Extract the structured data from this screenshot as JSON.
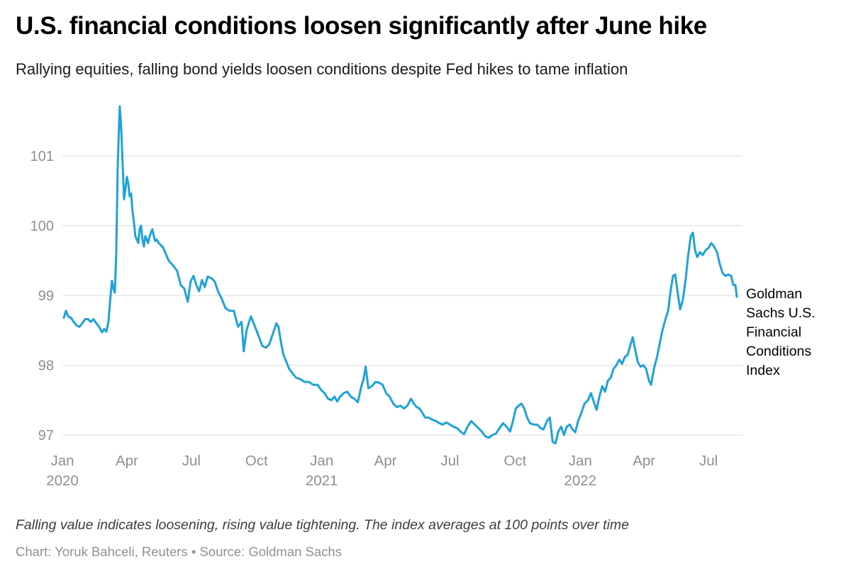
{
  "header": {
    "title": "U.S. financial conditions loosen significantly after June hike",
    "subtitle": "Rallying equities, falling bond yields loosen conditions despite Fed hikes to tame inflation"
  },
  "footer": {
    "note": "Falling value indicates loosening, rising value tightening. The index averages at 100 points over time",
    "credit": "Chart: Yoruk Bahceli, Reuters • Source: Goldman Sachs"
  },
  "chart_data": {
    "type": "line",
    "title": "U.S. financial conditions loosen significantly after June hike",
    "xlabel": "",
    "ylabel": "",
    "series_label": "Goldman Sachs U.S. Financial Conditions Index",
    "line_color": "#1FA2D7",
    "grid_color": "#dcdcdc",
    "axis_label_color": "#8f8f8f",
    "grid": true,
    "legend_position": "right-of-line-end",
    "ylim": [
      96.7,
      101.9
    ],
    "yticks": [
      97,
      98,
      99,
      100,
      101
    ],
    "x_range": [
      "2020-01-01",
      "2022-08-18"
    ],
    "xticks": [
      {
        "d": "2020-01-01",
        "l": "Jan",
        "y": "2020"
      },
      {
        "d": "2020-04-01",
        "l": "Apr"
      },
      {
        "d": "2020-07-01",
        "l": "Jul"
      },
      {
        "d": "2020-10-01",
        "l": "Oct"
      },
      {
        "d": "2021-01-01",
        "l": "Jan",
        "y": "2021"
      },
      {
        "d": "2021-04-01",
        "l": "Apr"
      },
      {
        "d": "2021-07-01",
        "l": "Jul"
      },
      {
        "d": "2021-10-01",
        "l": "Oct"
      },
      {
        "d": "2022-01-01",
        "l": "Jan",
        "y": "2022"
      },
      {
        "d": "2022-04-01",
        "l": "Apr"
      },
      {
        "d": "2022-07-01",
        "l": "Jul"
      }
    ],
    "points": [
      [
        "2020-01-03",
        98.68
      ],
      [
        "2020-01-06",
        98.78
      ],
      [
        "2020-01-09",
        98.7
      ],
      [
        "2020-01-13",
        98.68
      ],
      [
        "2020-01-17",
        98.62
      ],
      [
        "2020-01-21",
        98.57
      ],
      [
        "2020-01-25",
        98.55
      ],
      [
        "2020-01-29",
        98.6
      ],
      [
        "2020-02-02",
        98.66
      ],
      [
        "2020-02-06",
        98.66
      ],
      [
        "2020-02-10",
        98.62
      ],
      [
        "2020-02-14",
        98.66
      ],
      [
        "2020-02-18",
        98.6
      ],
      [
        "2020-02-22",
        98.55
      ],
      [
        "2020-02-26",
        98.47
      ],
      [
        "2020-02-29",
        98.52
      ],
      [
        "2020-03-03",
        98.48
      ],
      [
        "2020-03-06",
        98.62
      ],
      [
        "2020-03-09",
        99.0
      ],
      [
        "2020-03-11",
        99.21
      ],
      [
        "2020-03-13",
        99.1
      ],
      [
        "2020-03-15",
        99.04
      ],
      [
        "2020-03-17",
        99.6
      ],
      [
        "2020-03-19",
        100.8
      ],
      [
        "2020-03-21",
        101.45
      ],
      [
        "2020-03-22",
        101.71
      ],
      [
        "2020-03-24",
        101.4
      ],
      [
        "2020-03-26",
        100.9
      ],
      [
        "2020-03-28",
        100.38
      ],
      [
        "2020-03-30",
        100.52
      ],
      [
        "2020-04-01",
        100.7
      ],
      [
        "2020-04-03",
        100.6
      ],
      [
        "2020-04-05",
        100.42
      ],
      [
        "2020-04-07",
        100.46
      ],
      [
        "2020-04-09",
        100.2
      ],
      [
        "2020-04-11",
        100.05
      ],
      [
        "2020-04-13",
        99.85
      ],
      [
        "2020-04-15",
        99.8
      ],
      [
        "2020-04-17",
        99.75
      ],
      [
        "2020-04-19",
        99.95
      ],
      [
        "2020-04-21",
        100.0
      ],
      [
        "2020-04-23",
        99.8
      ],
      [
        "2020-04-25",
        99.7
      ],
      [
        "2020-04-27",
        99.85
      ],
      [
        "2020-04-29",
        99.8
      ],
      [
        "2020-05-01",
        99.75
      ],
      [
        "2020-05-03",
        99.85
      ],
      [
        "2020-05-05",
        99.9
      ],
      [
        "2020-05-07",
        99.95
      ],
      [
        "2020-05-09",
        99.85
      ],
      [
        "2020-05-11",
        99.78
      ],
      [
        "2020-05-13",
        99.8
      ],
      [
        "2020-05-16",
        99.75
      ],
      [
        "2020-05-19",
        99.72
      ],
      [
        "2020-05-22",
        99.69
      ],
      [
        "2020-05-30",
        99.5
      ],
      [
        "2020-06-06",
        99.42
      ],
      [
        "2020-06-11",
        99.35
      ],
      [
        "2020-06-16",
        99.15
      ],
      [
        "2020-06-21",
        99.1
      ],
      [
        "2020-06-26",
        98.91
      ],
      [
        "2020-06-30",
        99.2
      ],
      [
        "2020-07-04",
        99.28
      ],
      [
        "2020-07-08",
        99.15
      ],
      [
        "2020-07-12",
        99.06
      ],
      [
        "2020-07-16",
        99.22
      ],
      [
        "2020-07-20",
        99.12
      ],
      [
        "2020-07-24",
        99.27
      ],
      [
        "2020-07-29",
        99.25
      ],
      [
        "2020-08-03",
        99.2
      ],
      [
        "2020-08-08",
        99.05
      ],
      [
        "2020-08-13",
        98.95
      ],
      [
        "2020-08-18",
        98.82
      ],
      [
        "2020-08-24",
        98.78
      ],
      [
        "2020-08-30",
        98.78
      ],
      [
        "2020-09-05",
        98.55
      ],
      [
        "2020-09-10",
        98.62
      ],
      [
        "2020-09-13",
        98.2
      ],
      [
        "2020-09-17",
        98.5
      ],
      [
        "2020-09-23",
        98.7
      ],
      [
        "2020-09-29",
        98.55
      ],
      [
        "2020-10-04",
        98.42
      ],
      [
        "2020-10-09",
        98.28
      ],
      [
        "2020-10-14",
        98.25
      ],
      [
        "2020-10-19",
        98.3
      ],
      [
        "2020-10-24",
        98.45
      ],
      [
        "2020-10-29",
        98.6
      ],
      [
        "2020-11-01",
        98.55
      ],
      [
        "2020-11-05",
        98.3
      ],
      [
        "2020-11-08",
        98.15
      ],
      [
        "2020-11-12",
        98.05
      ],
      [
        "2020-11-16",
        97.95
      ],
      [
        "2020-11-21",
        97.88
      ],
      [
        "2020-11-26",
        97.82
      ],
      [
        "2020-12-02",
        97.8
      ],
      [
        "2020-12-08",
        97.76
      ],
      [
        "2020-12-14",
        97.76
      ],
      [
        "2020-12-20",
        97.72
      ],
      [
        "2020-12-26",
        97.72
      ],
      [
        "2020-12-31",
        97.65
      ],
      [
        "2021-01-05",
        97.6
      ],
      [
        "2021-01-10",
        97.52
      ],
      [
        "2021-01-15",
        97.5
      ],
      [
        "2021-01-19",
        97.55
      ],
      [
        "2021-01-23",
        97.48
      ],
      [
        "2021-01-27",
        97.55
      ],
      [
        "2021-02-01",
        97.6
      ],
      [
        "2021-02-06",
        97.62
      ],
      [
        "2021-02-11",
        97.55
      ],
      [
        "2021-02-16",
        97.52
      ],
      [
        "2021-02-21",
        97.47
      ],
      [
        "2021-02-26",
        97.7
      ],
      [
        "2021-03-01",
        97.8
      ],
      [
        "2021-03-04",
        97.98
      ],
      [
        "2021-03-08",
        97.67
      ],
      [
        "2021-03-13",
        97.7
      ],
      [
        "2021-03-18",
        97.76
      ],
      [
        "2021-03-23",
        97.75
      ],
      [
        "2021-03-28",
        97.72
      ],
      [
        "2021-04-02",
        97.6
      ],
      [
        "2021-04-07",
        97.55
      ],
      [
        "2021-04-12",
        97.45
      ],
      [
        "2021-04-17",
        97.4
      ],
      [
        "2021-04-22",
        97.42
      ],
      [
        "2021-04-27",
        97.38
      ],
      [
        "2021-05-02",
        97.42
      ],
      [
        "2021-05-07",
        97.52
      ],
      [
        "2021-05-11",
        97.45
      ],
      [
        "2021-05-15",
        97.4
      ],
      [
        "2021-05-19",
        97.38
      ],
      [
        "2021-05-23",
        97.32
      ],
      [
        "2021-05-27",
        97.25
      ],
      [
        "2021-06-01",
        97.25
      ],
      [
        "2021-06-06",
        97.22
      ],
      [
        "2021-06-11",
        97.2
      ],
      [
        "2021-06-16",
        97.17
      ],
      [
        "2021-06-21",
        97.15
      ],
      [
        "2021-06-26",
        97.18
      ],
      [
        "2021-07-01",
        97.15
      ],
      [
        "2021-07-06",
        97.12
      ],
      [
        "2021-07-11",
        97.1
      ],
      [
        "2021-07-16",
        97.05
      ],
      [
        "2021-07-21",
        97.01
      ],
      [
        "2021-07-26",
        97.12
      ],
      [
        "2021-07-31",
        97.2
      ],
      [
        "2021-08-05",
        97.15
      ],
      [
        "2021-08-10",
        97.1
      ],
      [
        "2021-08-15",
        97.05
      ],
      [
        "2021-08-20",
        96.98
      ],
      [
        "2021-08-25",
        96.96
      ],
      [
        "2021-08-30",
        97.0
      ],
      [
        "2021-09-04",
        97.02
      ],
      [
        "2021-09-09",
        97.1
      ],
      [
        "2021-09-14",
        97.17
      ],
      [
        "2021-09-19",
        97.12
      ],
      [
        "2021-09-24",
        97.05
      ],
      [
        "2021-09-28",
        97.2
      ],
      [
        "2021-10-02",
        97.38
      ],
      [
        "2021-10-06",
        97.42
      ],
      [
        "2021-10-10",
        97.45
      ],
      [
        "2021-10-14",
        97.38
      ],
      [
        "2021-10-18",
        97.25
      ],
      [
        "2021-10-22",
        97.17
      ],
      [
        "2021-10-27",
        97.15
      ],
      [
        "2021-11-01",
        97.15
      ],
      [
        "2021-11-06",
        97.1
      ],
      [
        "2021-11-10",
        97.08
      ],
      [
        "2021-11-15",
        97.2
      ],
      [
        "2021-11-19",
        97.25
      ],
      [
        "2021-11-23",
        96.9
      ],
      [
        "2021-11-27",
        96.88
      ],
      [
        "2021-12-01",
        97.05
      ],
      [
        "2021-12-05",
        97.12
      ],
      [
        "2021-12-09",
        97.0
      ],
      [
        "2021-12-13",
        97.12
      ],
      [
        "2021-12-17",
        97.15
      ],
      [
        "2021-12-21",
        97.08
      ],
      [
        "2021-12-25",
        97.04
      ],
      [
        "2021-12-29",
        97.2
      ],
      [
        "2022-01-02",
        97.3
      ],
      [
        "2022-01-07",
        97.45
      ],
      [
        "2022-01-12",
        97.5
      ],
      [
        "2022-01-16",
        97.6
      ],
      [
        "2022-01-20",
        97.48
      ],
      [
        "2022-01-24",
        97.36
      ],
      [
        "2022-01-28",
        97.55
      ],
      [
        "2022-02-01",
        97.7
      ],
      [
        "2022-02-05",
        97.62
      ],
      [
        "2022-02-09",
        97.78
      ],
      [
        "2022-02-13",
        97.82
      ],
      [
        "2022-02-17",
        97.95
      ],
      [
        "2022-02-21",
        98.0
      ],
      [
        "2022-02-25",
        98.08
      ],
      [
        "2022-03-01",
        98.02
      ],
      [
        "2022-03-05",
        98.12
      ],
      [
        "2022-03-09",
        98.15
      ],
      [
        "2022-03-13",
        98.3
      ],
      [
        "2022-03-16",
        98.4
      ],
      [
        "2022-03-19",
        98.25
      ],
      [
        "2022-03-23",
        98.05
      ],
      [
        "2022-03-27",
        97.98
      ],
      [
        "2022-03-31",
        98.0
      ],
      [
        "2022-04-04",
        97.95
      ],
      [
        "2022-04-08",
        97.78
      ],
      [
        "2022-04-11",
        97.72
      ],
      [
        "2022-04-15",
        97.95
      ],
      [
        "2022-04-19",
        98.1
      ],
      [
        "2022-04-23",
        98.3
      ],
      [
        "2022-04-27",
        98.5
      ],
      [
        "2022-05-01",
        98.65
      ],
      [
        "2022-05-05",
        98.78
      ],
      [
        "2022-05-09",
        99.1
      ],
      [
        "2022-05-12",
        99.28
      ],
      [
        "2022-05-15",
        99.3
      ],
      [
        "2022-05-19",
        99.0
      ],
      [
        "2022-05-22",
        98.8
      ],
      [
        "2022-05-26",
        98.95
      ],
      [
        "2022-05-30",
        99.25
      ],
      [
        "2022-06-02",
        99.55
      ],
      [
        "2022-06-06",
        99.85
      ],
      [
        "2022-06-09",
        99.9
      ],
      [
        "2022-06-12",
        99.65
      ],
      [
        "2022-06-15",
        99.55
      ],
      [
        "2022-06-19",
        99.62
      ],
      [
        "2022-06-23",
        99.58
      ],
      [
        "2022-06-27",
        99.65
      ],
      [
        "2022-07-01",
        99.68
      ],
      [
        "2022-07-05",
        99.75
      ],
      [
        "2022-07-09",
        99.7
      ],
      [
        "2022-07-13",
        99.62
      ],
      [
        "2022-07-17",
        99.45
      ],
      [
        "2022-07-21",
        99.32
      ],
      [
        "2022-07-25",
        99.28
      ],
      [
        "2022-07-29",
        99.3
      ],
      [
        "2022-08-02",
        99.28
      ],
      [
        "2022-08-05",
        99.15
      ],
      [
        "2022-08-08",
        99.15
      ],
      [
        "2022-08-10",
        98.98
      ]
    ]
  }
}
